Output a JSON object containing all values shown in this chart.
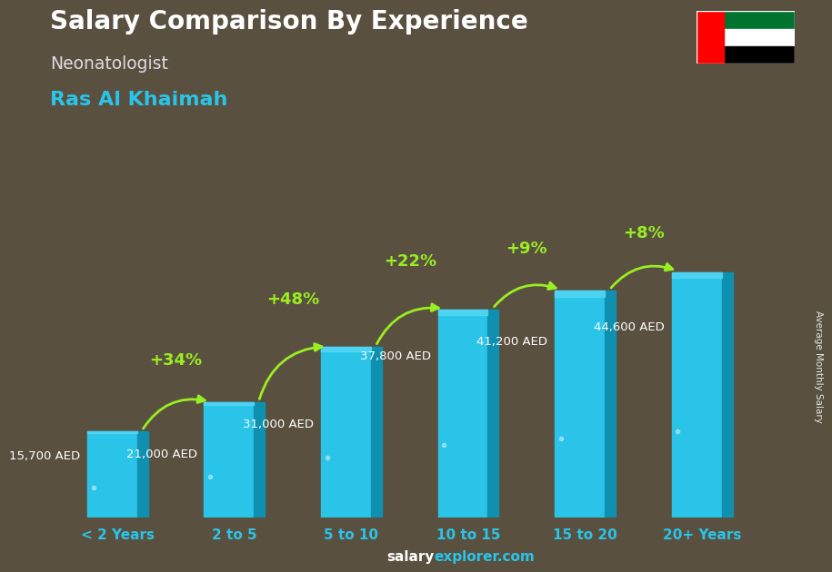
{
  "title": "Salary Comparison By Experience",
  "subtitle": "Neonatologist",
  "location": "Ras Al Khaimah",
  "ylabel": "Average Monthly Salary",
  "xlabel_categories": [
    "< 2 Years",
    "2 to 5",
    "5 to 10",
    "10 to 15",
    "15 to 20",
    "20+ Years"
  ],
  "values": [
    15700,
    21000,
    31000,
    37800,
    41200,
    44600
  ],
  "value_labels": [
    "15,700 AED",
    "21,000 AED",
    "31,000 AED",
    "37,800 AED",
    "41,200 AED",
    "44,600 AED"
  ],
  "pct_labels": [
    "+34%",
    "+48%",
    "+22%",
    "+9%",
    "+8%"
  ],
  "bar_color": "#29C4E8",
  "bar_color_dark": "#1090B0",
  "bar_color_light": "#55D8F5",
  "title_color": "#FFFFFF",
  "subtitle_color": "#DDDDDD",
  "location_color": "#29C4E8",
  "value_label_color": "#FFFFFF",
  "pct_color": "#99EE22",
  "arrow_color": "#99EE22",
  "tick_label_color": "#29C4E8",
  "bg_color": "#5a5040",
  "footer_salary_color": "#FFFFFF",
  "footer_explorer_color": "#29C4E8",
  "figsize": [
    9.0,
    6.41
  ],
  "dpi": 100,
  "ylim": [
    0,
    55000
  ]
}
